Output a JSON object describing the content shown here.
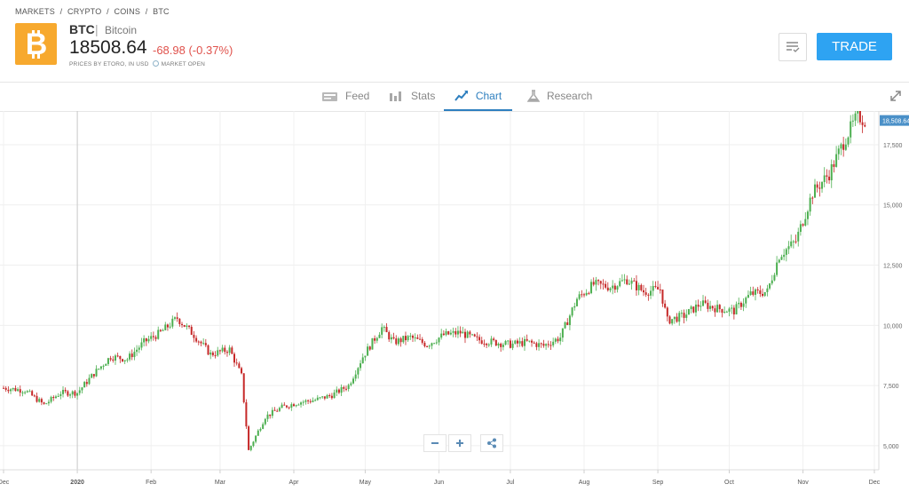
{
  "breadcrumb": [
    "MARKETS",
    "/",
    "CRYPTO",
    "/",
    "COINS",
    "/",
    "BTC"
  ],
  "instrument": {
    "symbol": "BTC",
    "separator": "|",
    "name": "Bitcoin",
    "price": "18508.64",
    "change": "-68.98 (-0.37%)",
    "source_note": "PRICES BY ETORO, IN USD",
    "market_status": "MARKET OPEN"
  },
  "actions": {
    "trade_label": "TRADE"
  },
  "tabs": [
    {
      "label": "Feed",
      "icon": "feed-icon"
    },
    {
      "label": "Stats",
      "icon": "stats-icon"
    },
    {
      "label": "Chart",
      "icon": "chart-icon",
      "active": true
    },
    {
      "label": "Research",
      "icon": "research-icon"
    }
  ],
  "colors": {
    "up": "#4caf50",
    "down": "#c62828",
    "accent": "#2ea3f2",
    "logo": "#f7a92e",
    "change": "#e0524c"
  },
  "chart_data": {
    "type": "candlestick",
    "current_value_label": "18,508.64",
    "x_tick_labels": [
      "Dec",
      "2020",
      "Feb",
      "Mar",
      "Apr",
      "May",
      "Jun",
      "Jul",
      "Aug",
      "Sep",
      "Oct",
      "Nov",
      "Dec"
    ],
    "y_tick_labels": [
      "5,000",
      "7,500",
      "10,000",
      "12,500",
      "15,000",
      "17,500"
    ],
    "y_ticks": [
      5000,
      7500,
      10000,
      12500,
      15000,
      17500
    ],
    "ylim": [
      4000,
      18900
    ],
    "x_period": [
      "2019-12",
      "2020-12"
    ],
    "close_series": [
      {
        "date": "2019-12-01",
        "close": 7400
      },
      {
        "date": "2019-12-10",
        "close": 7300
      },
      {
        "date": "2019-12-18",
        "close": 6700
      },
      {
        "date": "2019-12-25",
        "close": 7200
      },
      {
        "date": "2020-01-01",
        "close": 7200
      },
      {
        "date": "2020-01-08",
        "close": 8000
      },
      {
        "date": "2020-01-15",
        "close": 8700
      },
      {
        "date": "2020-01-22",
        "close": 8600
      },
      {
        "date": "2020-01-29",
        "close": 9300
      },
      {
        "date": "2020-02-05",
        "close": 9700
      },
      {
        "date": "2020-02-12",
        "close": 10300
      },
      {
        "date": "2020-02-19",
        "close": 9600
      },
      {
        "date": "2020-02-26",
        "close": 8800
      },
      {
        "date": "2020-03-05",
        "close": 9000
      },
      {
        "date": "2020-03-10",
        "close": 7900
      },
      {
        "date": "2020-03-13",
        "close": 4800
      },
      {
        "date": "2020-03-20",
        "close": 6200
      },
      {
        "date": "2020-03-27",
        "close": 6600
      },
      {
        "date": "2020-04-03",
        "close": 6800
      },
      {
        "date": "2020-04-10",
        "close": 6900
      },
      {
        "date": "2020-04-17",
        "close": 7100
      },
      {
        "date": "2020-04-24",
        "close": 7500
      },
      {
        "date": "2020-04-30",
        "close": 8700
      },
      {
        "date": "2020-05-08",
        "close": 9900
      },
      {
        "date": "2020-05-13",
        "close": 9300
      },
      {
        "date": "2020-05-20",
        "close": 9500
      },
      {
        "date": "2020-05-27",
        "close": 9200
      },
      {
        "date": "2020-06-03",
        "close": 9600
      },
      {
        "date": "2020-06-10",
        "close": 9700
      },
      {
        "date": "2020-06-17",
        "close": 9400
      },
      {
        "date": "2020-06-24",
        "close": 9300
      },
      {
        "date": "2020-07-01",
        "close": 9200
      },
      {
        "date": "2020-07-08",
        "close": 9300
      },
      {
        "date": "2020-07-15",
        "close": 9150
      },
      {
        "date": "2020-07-22",
        "close": 9500
      },
      {
        "date": "2020-07-29",
        "close": 11100
      },
      {
        "date": "2020-08-05",
        "close": 11700
      },
      {
        "date": "2020-08-12",
        "close": 11600
      },
      {
        "date": "2020-08-19",
        "close": 11900
      },
      {
        "date": "2020-08-26",
        "close": 11400
      },
      {
        "date": "2020-09-02",
        "close": 11500
      },
      {
        "date": "2020-09-05",
        "close": 10200
      },
      {
        "date": "2020-09-12",
        "close": 10400
      },
      {
        "date": "2020-09-19",
        "close": 10900
      },
      {
        "date": "2020-09-26",
        "close": 10700
      },
      {
        "date": "2020-10-03",
        "close": 10600
      },
      {
        "date": "2020-10-10",
        "close": 11300
      },
      {
        "date": "2020-10-17",
        "close": 11400
      },
      {
        "date": "2020-10-22",
        "close": 12900
      },
      {
        "date": "2020-10-29",
        "close": 13500
      },
      {
        "date": "2020-11-05",
        "close": 15500
      },
      {
        "date": "2020-11-12",
        "close": 16300
      },
      {
        "date": "2020-11-19",
        "close": 17800
      },
      {
        "date": "2020-11-24",
        "close": 18700
      },
      {
        "date": "2020-11-27",
        "close": 18508
      }
    ],
    "grid": true
  }
}
